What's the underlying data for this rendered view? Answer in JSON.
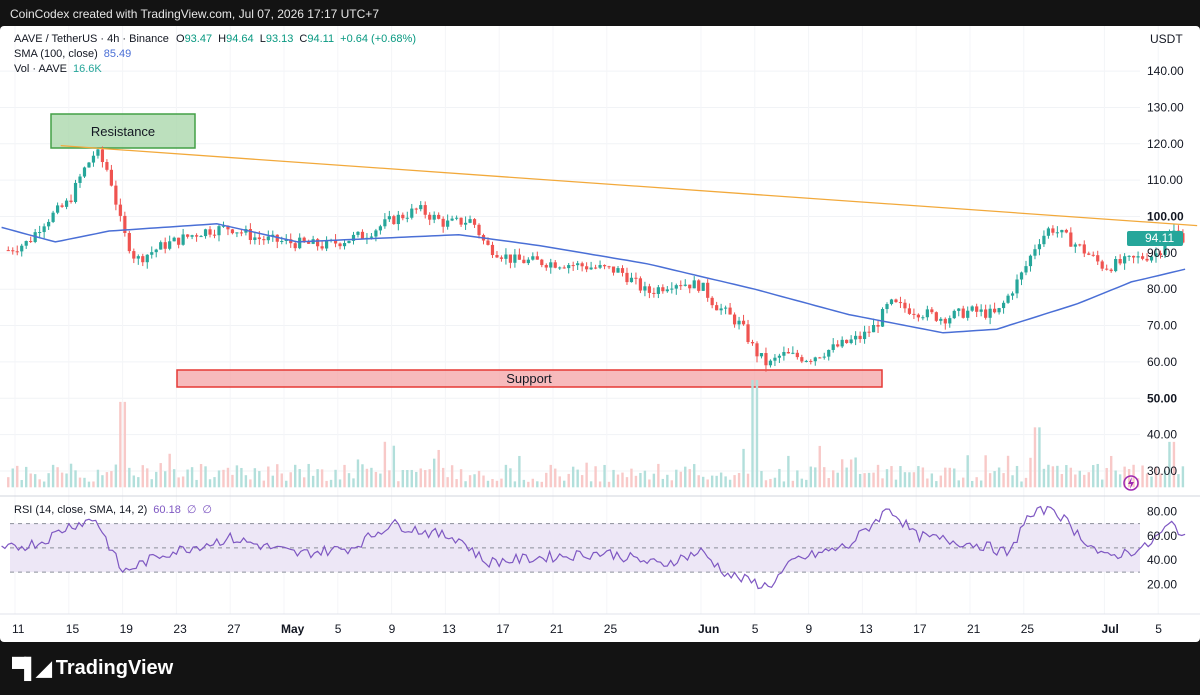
{
  "header": {
    "attribution": "CoinCodex created with TradingView.com, Jul 07, 2026 17:17 UTC+7"
  },
  "legend": {
    "symbol": "AAVE / TetherUS · 4h · Binance",
    "open_label": "O",
    "open": "93.47",
    "high_label": "H",
    "high": "94.64",
    "low_label": "L",
    "low": "93.13",
    "close_label": "C",
    "close": "94.11",
    "change": "+0.64 (+0.68%)",
    "sma_label": "SMA (100, close)",
    "sma_value": "85.49",
    "vol_label": "Vol · AAVE",
    "vol_value": "16.6K",
    "rsi_label": "RSI (14, close, SMA, 14, 2)",
    "rsi_value": "60.18",
    "rsi_na1": "∅",
    "rsi_na2": "∅"
  },
  "price_axis": {
    "currency": "USDT",
    "price_tag": "94.11"
  },
  "annotations": {
    "resistance": "Resistance",
    "support": "Support"
  },
  "footer": {
    "brand": "TradingView"
  },
  "colors": {
    "up": "#26a69a",
    "down": "#ef5350",
    "sma": "#4a6fd6",
    "trendline": "#f2a93b",
    "rsi": "#7e57c2",
    "rsi_band": "#ede7f6"
  },
  "chart_data": {
    "type": "candlestick",
    "symbol": "AAVE / TetherUS",
    "timeframe": "4h",
    "x_ticks": [
      "11",
      "15",
      "19",
      "23",
      "27",
      "May",
      "5",
      "9",
      "13",
      "17",
      "21",
      "25",
      "Jun",
      "5",
      "9",
      "13",
      "17",
      "21",
      "25",
      "Jul",
      "5"
    ],
    "y_ticks": [
      "140.00",
      "130.00",
      "120.00",
      "110.00",
      "100.00",
      "90.00",
      "80.00",
      "70.00",
      "60.00",
      "50.00",
      "40.00",
      "30.00"
    ],
    "rsi_ticks": [
      "80.00",
      "60.00",
      "40.00",
      "20.00"
    ],
    "ylim": [
      25,
      145
    ],
    "rsi_lim": [
      15,
      85
    ],
    "rsi_levels": [
      70,
      50,
      30
    ],
    "last_price": 94.11,
    "price_path": [
      {
        "date": "Apr 10",
        "price": 90
      },
      {
        "date": "Apr 12",
        "price": 93
      },
      {
        "date": "Apr 13",
        "price": 98
      },
      {
        "date": "Apr 15",
        "price": 104
      },
      {
        "date": "Apr 16",
        "price": 112
      },
      {
        "date": "Apr 17",
        "price": 118
      },
      {
        "date": "Apr 18",
        "price": 112
      },
      {
        "date": "Apr 19",
        "price": 96
      },
      {
        "date": "Apr 20",
        "price": 88
      },
      {
        "date": "Apr 22",
        "price": 92
      },
      {
        "date": "Apr 25",
        "price": 96
      },
      {
        "date": "Apr 27",
        "price": 97
      },
      {
        "date": "Apr 29",
        "price": 94
      },
      {
        "date": "May 1",
        "price": 93
      },
      {
        "date": "May 4",
        "price": 92
      },
      {
        "date": "May 7",
        "price": 95
      },
      {
        "date": "May 9",
        "price": 99
      },
      {
        "date": "May 11",
        "price": 102
      },
      {
        "date": "May 13",
        "price": 98
      },
      {
        "date": "May 15",
        "price": 99
      },
      {
        "date": "May 16",
        "price": 92
      },
      {
        "date": "May 18",
        "price": 88
      },
      {
        "date": "May 22",
        "price": 87
      },
      {
        "date": "May 24",
        "price": 86
      },
      {
        "date": "May 26",
        "price": 85
      },
      {
        "date": "May 28",
        "price": 79
      },
      {
        "date": "May 30",
        "price": 82
      },
      {
        "date": "Jun 1",
        "price": 81
      },
      {
        "date": "Jun 2",
        "price": 76
      },
      {
        "date": "Jun 4",
        "price": 70
      },
      {
        "date": "Jun 5",
        "price": 63
      },
      {
        "date": "Jun 6",
        "price": 59
      },
      {
        "date": "Jun 7",
        "price": 62
      },
      {
        "date": "Jun 9",
        "price": 61
      },
      {
        "date": "Jun 11",
        "price": 64
      },
      {
        "date": "Jun 13",
        "price": 67
      },
      {
        "date": "Jun 14",
        "price": 70
      },
      {
        "date": "Jun 15",
        "price": 76
      },
      {
        "date": "Jun 17",
        "price": 74
      },
      {
        "date": "Jun 19",
        "price": 72
      },
      {
        "date": "Jun 21",
        "price": 74
      },
      {
        "date": "Jun 23",
        "price": 73
      },
      {
        "date": "Jun 25",
        "price": 85
      },
      {
        "date": "Jun 26",
        "price": 93
      },
      {
        "date": "Jun 27",
        "price": 97
      },
      {
        "date": "Jun 29",
        "price": 92
      },
      {
        "date": "Jul 1",
        "price": 86
      },
      {
        "date": "Jul 3",
        "price": 88
      },
      {
        "date": "Jul 5",
        "price": 90
      },
      {
        "date": "Jul 6",
        "price": 96
      },
      {
        "date": "Jul 7",
        "price": 94
      }
    ],
    "sma_path": [
      {
        "date": "Apr 10",
        "value": 97
      },
      {
        "date": "Apr 14",
        "value": 93
      },
      {
        "date": "Apr 18",
        "value": 96
      },
      {
        "date": "Apr 26",
        "value": 98
      },
      {
        "date": "May 2",
        "value": 93
      },
      {
        "date": "May 8",
        "value": 94
      },
      {
        "date": "May 14",
        "value": 95
      },
      {
        "date": "May 20",
        "value": 92
      },
      {
        "date": "May 28",
        "value": 87
      },
      {
        "date": "Jun 5",
        "value": 80
      },
      {
        "date": "Jun 12",
        "value": 73
      },
      {
        "date": "Jun 19",
        "value": 68
      },
      {
        "date": "Jun 23",
        "value": 69
      },
      {
        "date": "Jun 29",
        "value": 76
      },
      {
        "date": "Jul 3",
        "value": 82
      },
      {
        "date": "Jul 7",
        "value": 85.49
      }
    ],
    "rsi_path": [
      {
        "date": "Apr 10",
        "value": 48
      },
      {
        "date": "Apr 13",
        "value": 55
      },
      {
        "date": "Apr 15",
        "value": 68
      },
      {
        "date": "Apr 17",
        "value": 74
      },
      {
        "date": "Apr 19",
        "value": 30
      },
      {
        "date": "Apr 22",
        "value": 45
      },
      {
        "date": "Apr 27",
        "value": 58
      },
      {
        "date": "May 2",
        "value": 45
      },
      {
        "date": "May 6",
        "value": 50
      },
      {
        "date": "May 9",
        "value": 70
      },
      {
        "date": "May 12",
        "value": 62
      },
      {
        "date": "May 14",
        "value": 58
      },
      {
        "date": "May 16",
        "value": 38
      },
      {
        "date": "May 20",
        "value": 42
      },
      {
        "date": "May 25",
        "value": 46
      },
      {
        "date": "May 29",
        "value": 36
      },
      {
        "date": "Jun 1",
        "value": 47
      },
      {
        "date": "Jun 3",
        "value": 28
      },
      {
        "date": "Jun 6",
        "value": 18
      },
      {
        "date": "Jun 8",
        "value": 40
      },
      {
        "date": "Jun 12",
        "value": 52
      },
      {
        "date": "Jun 15",
        "value": 83
      },
      {
        "date": "Jun 17",
        "value": 60
      },
      {
        "date": "Jun 22",
        "value": 52
      },
      {
        "date": "Jun 24",
        "value": 45
      },
      {
        "date": "Jun 25",
        "value": 72
      },
      {
        "date": "Jun 27",
        "value": 85
      },
      {
        "date": "Jun 29",
        "value": 62
      },
      {
        "date": "Jul 1",
        "value": 42
      },
      {
        "date": "Jul 4",
        "value": 50
      },
      {
        "date": "Jul 6",
        "value": 70
      },
      {
        "date": "Jul 7",
        "value": 60.18
      }
    ],
    "volume_spikes": [
      {
        "date": "Apr 19",
        "value": 49
      },
      {
        "date": "Jun 5",
        "value": 55
      },
      {
        "date": "Jun 26",
        "value": 42
      },
      {
        "date": "Jul 6",
        "value": 38
      }
    ],
    "resistance_line": [
      {
        "date": "Apr 17",
        "price": 119.5
      },
      {
        "date": "Jul 7",
        "price": 97.5
      }
    ],
    "resistance_zone": {
      "price_range": [
        118,
        127
      ]
    },
    "support_zone": {
      "price_range": [
        53,
        57
      ]
    }
  }
}
